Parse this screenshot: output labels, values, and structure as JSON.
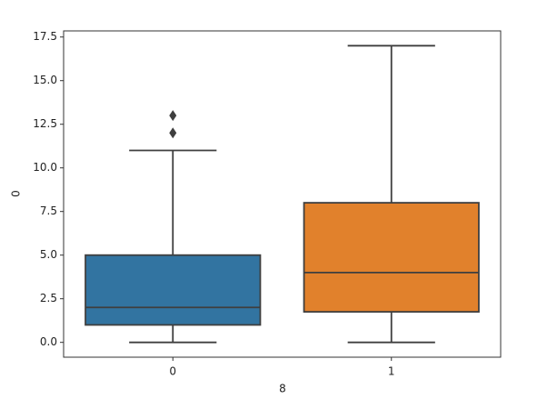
{
  "chart_data": {
    "type": "box",
    "x_label": "8",
    "y_label": "0",
    "categories": [
      "0",
      "1"
    ],
    "colors": [
      "#3274a1",
      "#e1812c"
    ],
    "boxes": [
      {
        "whislo": 0,
        "q1": 1,
        "med": 2,
        "q3": 5,
        "whishi": 11,
        "fliers": [
          12,
          13
        ]
      },
      {
        "whislo": 0,
        "q1": 1.75,
        "med": 4,
        "q3": 8,
        "whishi": 17,
        "fliers": []
      }
    ],
    "ylim": [
      -0.85,
      17.85
    ],
    "yticks": [
      {
        "value": 0,
        "label": "0.0"
      },
      {
        "value": 2.5,
        "label": "2.5"
      },
      {
        "value": 5,
        "label": "5.0"
      },
      {
        "value": 7.5,
        "label": "7.5"
      },
      {
        "value": 10,
        "label": "10.0"
      },
      {
        "value": 12.5,
        "label": "12.5"
      },
      {
        "value": 15,
        "label": "15.0"
      },
      {
        "value": 17.5,
        "label": "17.5"
      }
    ]
  }
}
